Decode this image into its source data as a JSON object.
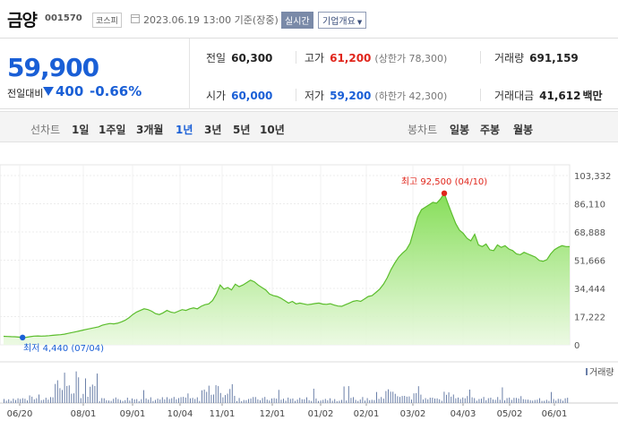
{
  "header": {
    "name": "금양",
    "code": "001570",
    "market": "코스피",
    "date": "2023.06.19 13:00  기준(장중)",
    "realtime": "실시간",
    "corp_info": "기업개요"
  },
  "quote": {
    "price": "59,900",
    "change_label": "전일대비",
    "change_value": "400",
    "change_pct": "-0.66%",
    "prev": {
      "label": "전일",
      "value": "60,300"
    },
    "high": {
      "label": "고가",
      "value": "61,200",
      "sub": "(상한가 78,300)"
    },
    "volume": {
      "label": "거래량",
      "value": "691,159"
    },
    "open": {
      "label": "시가",
      "value": "60,000"
    },
    "low": {
      "label": "저가",
      "value": "59,200",
      "sub": "(하한가 42,300)"
    },
    "amount": {
      "label": "거래대금",
      "value": "41,612",
      "unit": "백만"
    }
  },
  "tabs": {
    "line_label": "선차트",
    "line_items": [
      "1일",
      "1주일",
      "3개월",
      "1년",
      "3년",
      "5년",
      "10년"
    ],
    "active": "1년",
    "candle_label": "봉차트",
    "candle_items": [
      "일봉",
      "주봉",
      "월봉"
    ]
  },
  "colors": {
    "accent_blue": "#1a5fd6",
    "up_red": "#e0251b",
    "area_green": "#7fdc4f"
  },
  "chart_data": {
    "type": "area",
    "y_ticks": [
      "103,332",
      "86,110",
      "68,888",
      "51,666",
      "34,444",
      "17,222",
      "0"
    ],
    "ylim": [
      0,
      103332
    ],
    "x_ticks": [
      "06/20",
      "08/01",
      "09/01",
      "10/04",
      "11/01",
      "12/01",
      "01/02",
      "02/01",
      "03/02",
      "04/03",
      "05/02",
      "06/01"
    ],
    "high_annotation": "최고 92,500 (04/10)",
    "low_annotation": "최저 4,440 (07/04)",
    "volume_legend": "거래량",
    "values": [
      5200,
      5100,
      5000,
      4900,
      4700,
      4440,
      4600,
      5000,
      5300,
      5400,
      5300,
      5400,
      5600,
      5800,
      6000,
      6200,
      6500,
      7000,
      7500,
      8000,
      8500,
      9000,
      9500,
      10000,
      10500,
      11000,
      12000,
      12500,
      13000,
      12800,
      13200,
      14000,
      15000,
      16500,
      18500,
      20000,
      21000,
      22000,
      21500,
      20500,
      19000,
      18500,
      19500,
      21000,
      20000,
      19500,
      20500,
      21500,
      21000,
      22000,
      22500,
      22000,
      23500,
      24500,
      25000,
      27000,
      31000,
      36500,
      34000,
      35000,
      33500,
      37000,
      35500,
      36500,
      38000,
      39500,
      38500,
      36500,
      35000,
      33500,
      31000,
      30000,
      29500,
      28500,
      27000,
      25500,
      26500,
      25000,
      25500,
      25000,
      24500,
      24800,
      25200,
      25500,
      24900,
      24700,
      25100,
      24300,
      23700,
      23500,
      24500,
      25500,
      26500,
      27000,
      26500,
      28000,
      29500,
      30000,
      32000,
      34000,
      37000,
      41000,
      46000,
      50000,
      53500,
      56000,
      58000,
      62000,
      70000,
      78000,
      82500,
      84000,
      85500,
      87000,
      86500,
      89000,
      92500,
      86000,
      80000,
      74000,
      70000,
      68000,
      65000,
      63500,
      67500,
      61000,
      60000,
      61500,
      58000,
      57500,
      61000,
      59500,
      60500,
      58500,
      57500,
      55500,
      55000,
      56500,
      55500,
      54500,
      53500,
      51500,
      51000,
      52000,
      55500,
      58000,
      59500,
      60500,
      60000,
      59900
    ]
  }
}
